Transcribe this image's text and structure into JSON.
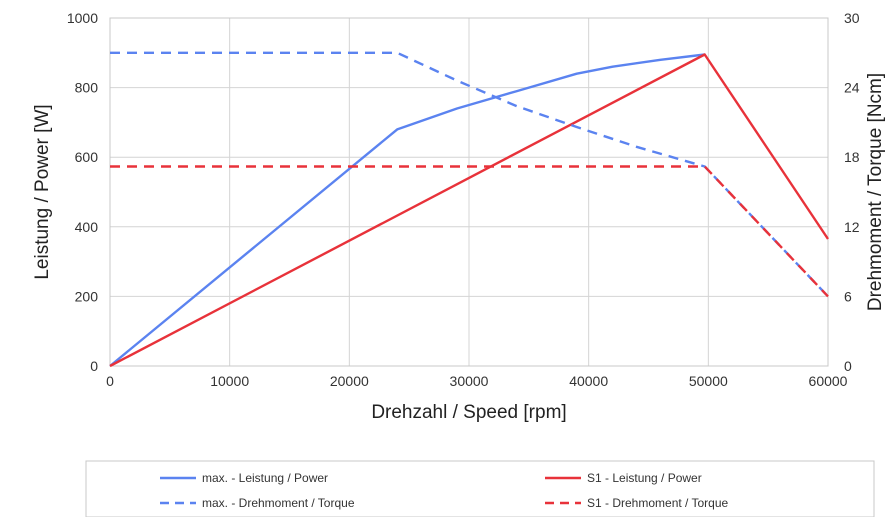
{
  "chart_data": {
    "type": "line",
    "xlabel": "Drehzahl / Speed [rpm]",
    "ylabel_left": "Leistung / Power [W]",
    "ylabel_right": "Drehmoment / Torque [Ncm]",
    "xlim": [
      0,
      60000
    ],
    "ylim_left": [
      0,
      1000
    ],
    "ylim_right": [
      0,
      30
    ],
    "x_ticks": [
      "0",
      "10000",
      "20000",
      "30000",
      "40000",
      "50000",
      "60000"
    ],
    "y_left_ticks": [
      "0",
      "200",
      "400",
      "600",
      "800",
      "1000"
    ],
    "y_right_ticks": [
      "0",
      "6",
      "12",
      "18",
      "24",
      "30"
    ],
    "grid": true,
    "legend_position": "bottom",
    "series": [
      {
        "name": "max. - Leistung / Power",
        "axis": "left",
        "color": "#5b83f0",
        "dash": "solid",
        "points": [
          [
            0,
            0
          ],
          [
            24000,
            680
          ],
          [
            29000,
            740
          ],
          [
            34000,
            790
          ],
          [
            39000,
            840
          ],
          [
            42000,
            860
          ],
          [
            46000,
            880
          ],
          [
            49700,
            895
          ]
        ]
      },
      {
        "name": "S1 - Leistung / Power",
        "axis": "left",
        "color": "#e8323a",
        "dash": "solid",
        "points": [
          [
            0,
            0
          ],
          [
            49700,
            895
          ],
          [
            60000,
            365
          ]
        ]
      },
      {
        "name": "max. - Drehmoment / Torque",
        "axis": "right",
        "color": "#5b83f0",
        "dash": "dashed",
        "points": [
          [
            0,
            27
          ],
          [
            24000,
            27
          ],
          [
            29000,
            24.6
          ],
          [
            34000,
            22.4
          ],
          [
            39000,
            20.6
          ],
          [
            44000,
            18.9
          ],
          [
            49700,
            17.2
          ],
          [
            60000,
            6
          ]
        ]
      },
      {
        "name": "S1 - Drehmoment / Torque",
        "axis": "right",
        "color": "#e8323a",
        "dash": "dashed",
        "points": [
          [
            0,
            17.2
          ],
          [
            49700,
            17.2
          ],
          [
            60000,
            6
          ]
        ]
      }
    ]
  }
}
